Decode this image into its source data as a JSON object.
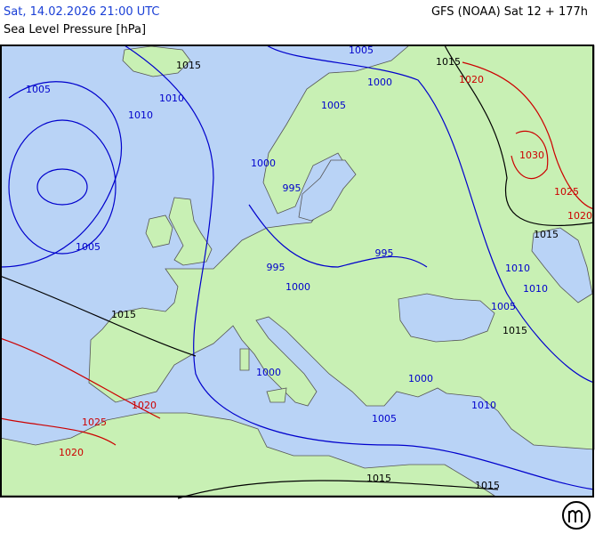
{
  "header": {
    "date": "Sat, 14.02.2026 21:00 UTC",
    "model": "GFS (NOAA) Sat 12 + 177h",
    "subtitle": "Sea Level Pressure [hPa]"
  },
  "isobar_labels": [
    {
      "text": "1015",
      "color": "#000000"
    },
    {
      "text": "1005",
      "color": "#0000cc"
    },
    {
      "text": "1015",
      "color": "#000000"
    },
    {
      "text": "1005",
      "color": "#0000cc"
    },
    {
      "text": "1010",
      "color": "#0000cc"
    },
    {
      "text": "1000",
      "color": "#0000cc"
    },
    {
      "text": "1005",
      "color": "#0000cc"
    },
    {
      "text": "1020",
      "color": "#cc0000"
    },
    {
      "text": "1010",
      "color": "#0000cc"
    },
    {
      "text": "1030",
      "color": "#cc0000"
    },
    {
      "text": "1000",
      "color": "#0000cc"
    },
    {
      "text": "995",
      "color": "#0000cc"
    },
    {
      "text": "1025",
      "color": "#cc0000"
    },
    {
      "text": "1020",
      "color": "#cc0000"
    },
    {
      "text": "1005",
      "color": "#0000cc"
    },
    {
      "text": "1015",
      "color": "#000000"
    },
    {
      "text": "995",
      "color": "#0000cc"
    },
    {
      "text": "995",
      "color": "#0000cc"
    },
    {
      "text": "1010",
      "color": "#0000cc"
    },
    {
      "text": "1010",
      "color": "#0000cc"
    },
    {
      "text": "1000",
      "color": "#0000cc"
    },
    {
      "text": "1015",
      "color": "#000000"
    },
    {
      "text": "1005",
      "color": "#0000cc"
    },
    {
      "text": "1015",
      "color": "#000000"
    },
    {
      "text": "1000",
      "color": "#0000cc"
    },
    {
      "text": "1000",
      "color": "#0000cc"
    },
    {
      "text": "1020",
      "color": "#cc0000"
    },
    {
      "text": "1010",
      "color": "#0000cc"
    },
    {
      "text": "1005",
      "color": "#0000cc"
    },
    {
      "text": "1025",
      "color": "#cc0000"
    },
    {
      "text": "1020",
      "color": "#cc0000"
    },
    {
      "text": "1015",
      "color": "#000000"
    },
    {
      "text": "1015",
      "color": "#000000"
    }
  ]
}
